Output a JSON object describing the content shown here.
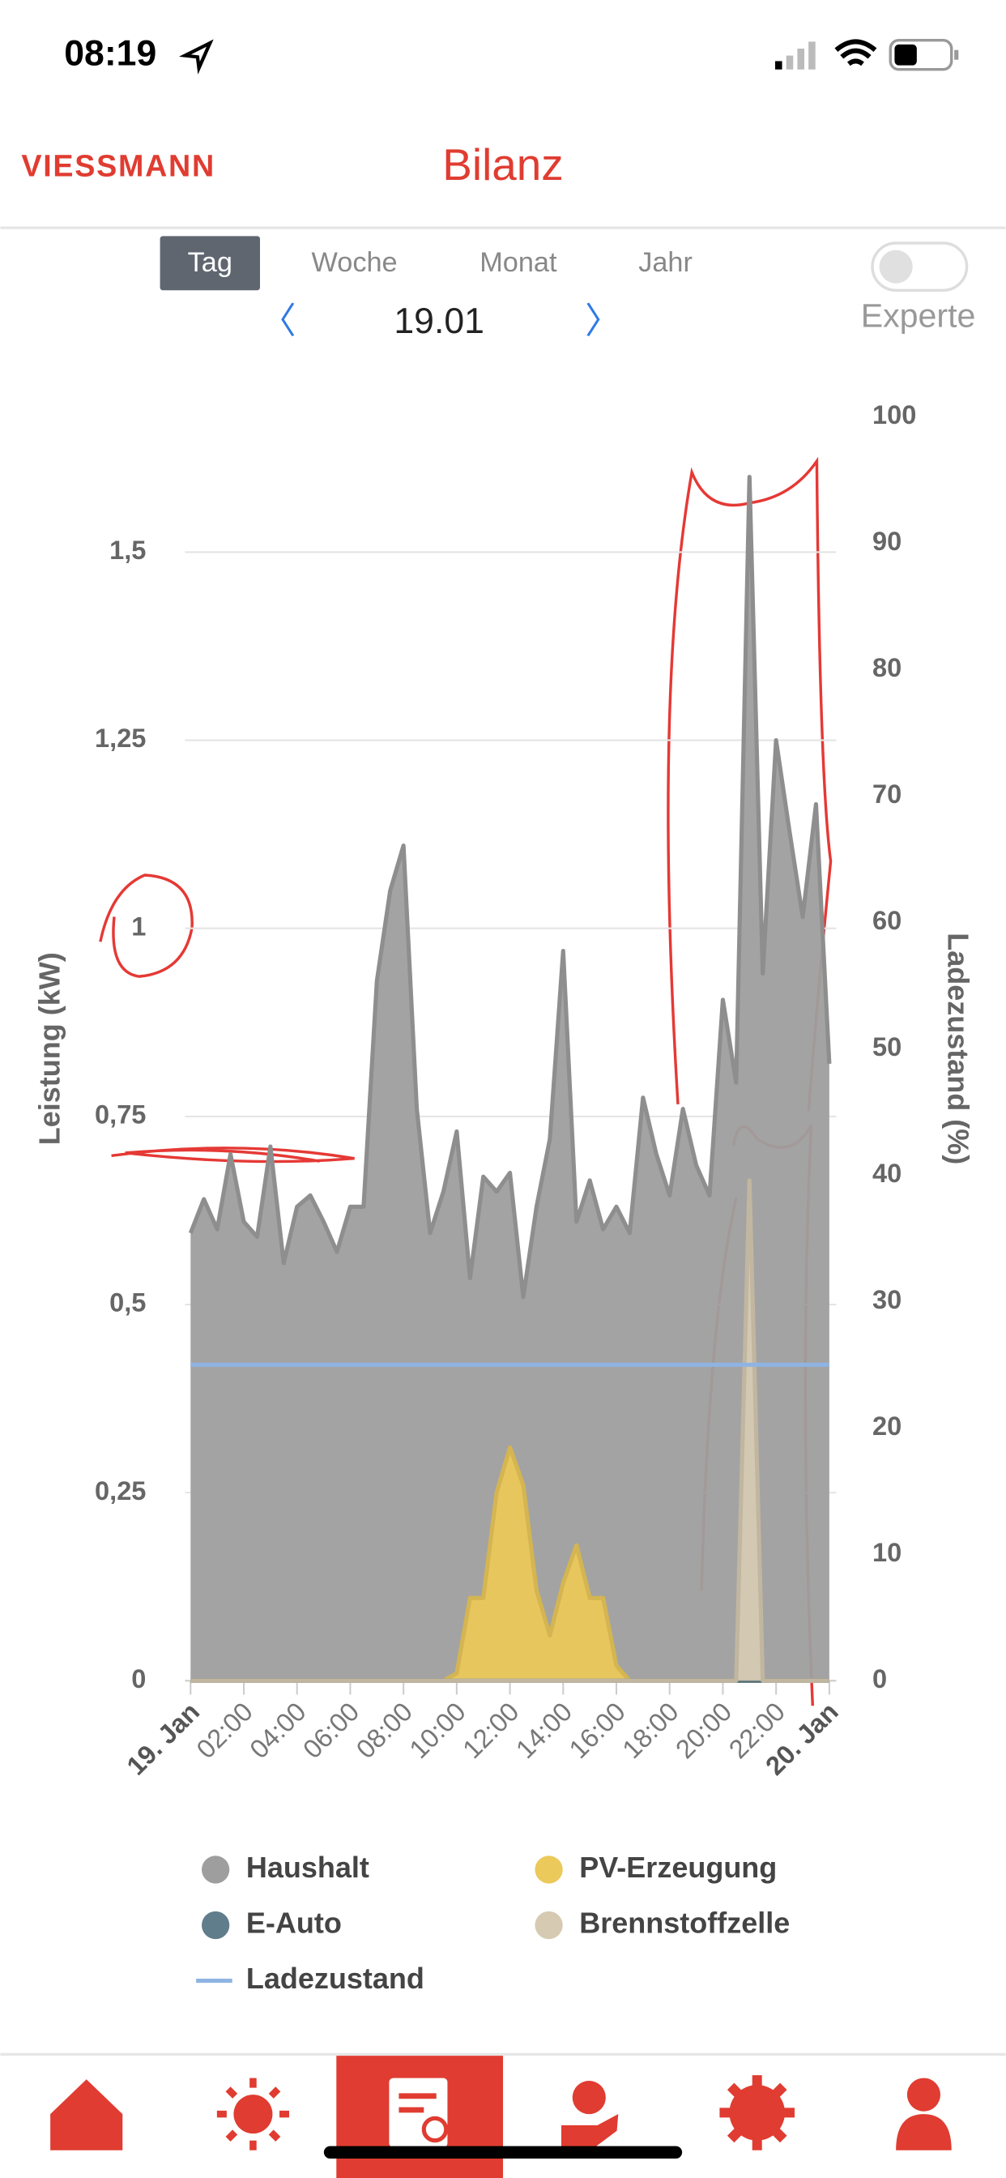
{
  "status_bar": {
    "time": "08:19"
  },
  "header": {
    "brand": "VIESSMANN",
    "title": "Bilanz"
  },
  "tabs": {
    "items": [
      "Tag",
      "Woche",
      "Monat",
      "Jahr"
    ],
    "selected": 0
  },
  "date_nav": {
    "date": "19.01"
  },
  "toggle": {
    "label": "Experte",
    "on": false
  },
  "chart_data": {
    "type": "area",
    "ylabel": "Leistung (kW)",
    "y2label": "Ladezustand (%)",
    "x": [
      0,
      0.5,
      1,
      1.5,
      2,
      2.5,
      3,
      3.5,
      4,
      4.5,
      5,
      5.5,
      6,
      6.5,
      7,
      7.5,
      8,
      8.5,
      9,
      9.5,
      10,
      10.5,
      11,
      11.5,
      12,
      12.5,
      13,
      13.5,
      14,
      14.5,
      15,
      15.5,
      16,
      16.5,
      17,
      17.5,
      18,
      18.5,
      19,
      19.5,
      20,
      20.5,
      21,
      21.5,
      22,
      22.5,
      23,
      23.5,
      24
    ],
    "xlim": [
      0,
      24
    ],
    "xticks": [
      {
        "value": 0,
        "label": "19. Jan"
      },
      {
        "value": 2,
        "label": "02:00"
      },
      {
        "value": 4,
        "label": "04:00"
      },
      {
        "value": 6,
        "label": "06:00"
      },
      {
        "value": 8,
        "label": "08:00"
      },
      {
        "value": 10,
        "label": "10:00"
      },
      {
        "value": 12,
        "label": "12:00"
      },
      {
        "value": 14,
        "label": "14:00"
      },
      {
        "value": 16,
        "label": "16:00"
      },
      {
        "value": 18,
        "label": "18:00"
      },
      {
        "value": 20,
        "label": "20:00"
      },
      {
        "value": 22,
        "label": "22:00"
      },
      {
        "value": 24,
        "label": "20. Jan"
      }
    ],
    "ylim": [
      0,
      1.68
    ],
    "yticks": [
      0,
      {
        "value": 0.25,
        "label": "0,25"
      },
      {
        "value": 0.5,
        "label": "0,5"
      },
      {
        "value": 0.75,
        "label": "0,75"
      },
      1,
      {
        "value": 1.25,
        "label": "1,25"
      },
      {
        "value": 1.5,
        "label": "1,5"
      }
    ],
    "y2lim": [
      0,
      100
    ],
    "y2ticks": [
      0,
      10,
      20,
      30,
      40,
      50,
      60,
      70,
      80,
      90,
      100
    ],
    "grid": true,
    "series": [
      {
        "name": "Haushalt",
        "color": "#9e9e9e",
        "kind": "area",
        "values": [
          0.595,
          0.64,
          0.6,
          0.7,
          0.61,
          0.59,
          0.71,
          0.555,
          0.63,
          0.645,
          0.61,
          0.57,
          0.63,
          0.63,
          0.93,
          1.05,
          1.11,
          0.76,
          0.595,
          0.65,
          0.73,
          0.535,
          0.67,
          0.65,
          0.675,
          0.51,
          0.63,
          0.72,
          0.97,
          0.61,
          0.665,
          0.6,
          0.63,
          0.595,
          0.775,
          0.7,
          0.645,
          0.76,
          0.685,
          0.645,
          0.905,
          0.795,
          1.6,
          0.94,
          1.25,
          1.13,
          1.015,
          1.165,
          0.82
        ]
      },
      {
        "name": "PV-Erzeugung",
        "color": "#ebc95a",
        "kind": "area",
        "values": [
          0,
          0,
          0,
          0,
          0,
          0,
          0,
          0,
          0,
          0,
          0,
          0,
          0,
          0,
          0,
          0,
          0,
          0,
          0,
          0,
          0.01,
          0.11,
          0.11,
          0.25,
          0.31,
          0.26,
          0.12,
          0.06,
          0.13,
          0.18,
          0.11,
          0.11,
          0.02,
          0,
          0,
          0,
          0,
          0,
          0,
          0,
          0,
          0,
          0,
          0,
          0,
          0,
          0,
          0,
          0
        ]
      },
      {
        "name": "E-Auto",
        "color": "#607d8b",
        "kind": "area",
        "values": [
          0,
          0,
          0,
          0,
          0,
          0,
          0,
          0,
          0,
          0,
          0,
          0,
          0,
          0,
          0,
          0,
          0,
          0,
          0,
          0,
          0,
          0,
          0,
          0,
          0,
          0,
          0,
          0,
          0,
          0,
          0,
          0,
          0,
          0,
          0,
          0,
          0,
          0,
          0,
          0,
          0,
          0,
          0,
          0,
          0,
          0,
          0,
          0,
          0
        ]
      },
      {
        "name": "Brennstoffzelle",
        "color": "#d6cab2",
        "kind": "area",
        "values": [
          0,
          0,
          0,
          0,
          0,
          0,
          0,
          0,
          0,
          0,
          0,
          0,
          0,
          0,
          0,
          0,
          0,
          0,
          0,
          0,
          0,
          0,
          0,
          0,
          0,
          0,
          0,
          0,
          0,
          0,
          0,
          0,
          0,
          0,
          0,
          0,
          0,
          0,
          0,
          0,
          0,
          0,
          0.665,
          0,
          0,
          0,
          0,
          0,
          0
        ]
      },
      {
        "name": "Ladezustand",
        "color": "#8fb4e3",
        "kind": "line",
        "axis": "y2",
        "values": [
          25,
          25,
          25,
          25,
          25,
          25,
          25,
          25,
          25,
          25,
          25,
          25,
          25,
          25,
          25,
          25,
          25,
          25,
          25,
          25,
          25,
          25,
          25,
          25,
          25,
          25,
          25,
          25,
          25,
          25,
          25,
          25,
          25,
          25,
          25,
          25,
          25,
          25,
          25,
          25,
          25,
          25,
          25,
          25,
          25,
          25,
          25,
          25,
          25
        ]
      }
    ]
  }
}
